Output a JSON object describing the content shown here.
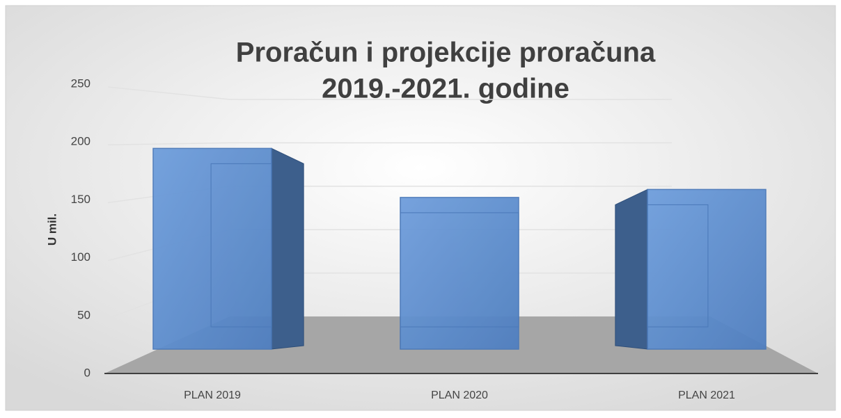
{
  "chart_data": {
    "type": "bar3d",
    "title": [
      "Proračun i projekcije proračuna",
      "2019.-2021. godine"
    ],
    "y_label": "U mil.",
    "categories": [
      "PLAN 2019",
      "PLAN 2020",
      "PLAN 2021"
    ],
    "values": [
      176,
      133,
      140
    ],
    "color": "#5b8fd4",
    "ylim": [
      0,
      250
    ],
    "yticks": [
      0,
      50,
      100,
      150,
      200,
      250
    ],
    "grid": true
  }
}
